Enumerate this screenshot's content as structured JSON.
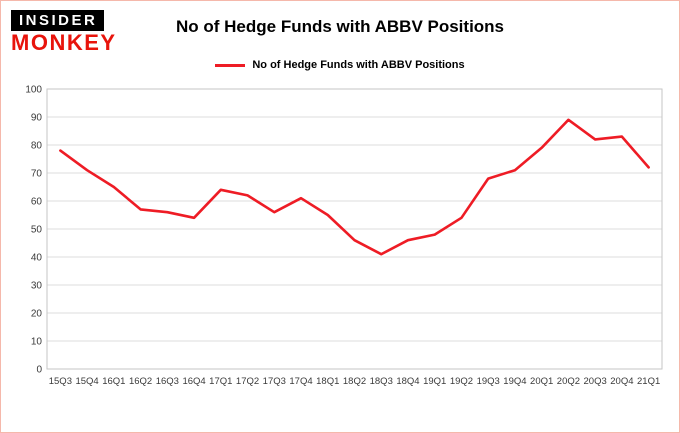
{
  "branding": {
    "logo_top": "INSIDER",
    "logo_bottom": "MONKEY"
  },
  "header": {
    "title": "No of Hedge Funds with ABBV Positions"
  },
  "legend": {
    "label": "No of Hedge Funds with ABBV Positions"
  },
  "colors": {
    "line": "#ee1c25",
    "logo_red": "#e8140c",
    "logo_black": "#000000",
    "page_border": "#f5b8ab",
    "grid": "#dcdcdc",
    "plot_border": "#c6c6c6",
    "axis_zero": "#9a9a9a"
  },
  "chart_data": {
    "type": "line",
    "title": "No of Hedge Funds with ABBV Positions",
    "categories": [
      "15Q3",
      "15Q4",
      "16Q1",
      "16Q2",
      "16Q3",
      "16Q4",
      "17Q1",
      "17Q2",
      "17Q3",
      "17Q4",
      "18Q1",
      "18Q2",
      "18Q3",
      "18Q4",
      "19Q1",
      "19Q2",
      "19Q3",
      "19Q4",
      "20Q1",
      "20Q2",
      "20Q3",
      "20Q4",
      "21Q1"
    ],
    "series": [
      {
        "name": "No of Hedge Funds with ABBV Positions",
        "color": "#ee1c25",
        "values": [
          78,
          71,
          65,
          57,
          56,
          54,
          64,
          62,
          56,
          61,
          55,
          46,
          41,
          46,
          48,
          54,
          68,
          71,
          79,
          89,
          82,
          83,
          72
        ]
      }
    ],
    "xlabel": "",
    "ylabel": "",
    "ylim": [
      0,
      100
    ],
    "yticks": [
      0,
      10,
      20,
      30,
      40,
      50,
      60,
      70,
      80,
      90,
      100
    ],
    "grid": true,
    "legend_position": "top"
  }
}
